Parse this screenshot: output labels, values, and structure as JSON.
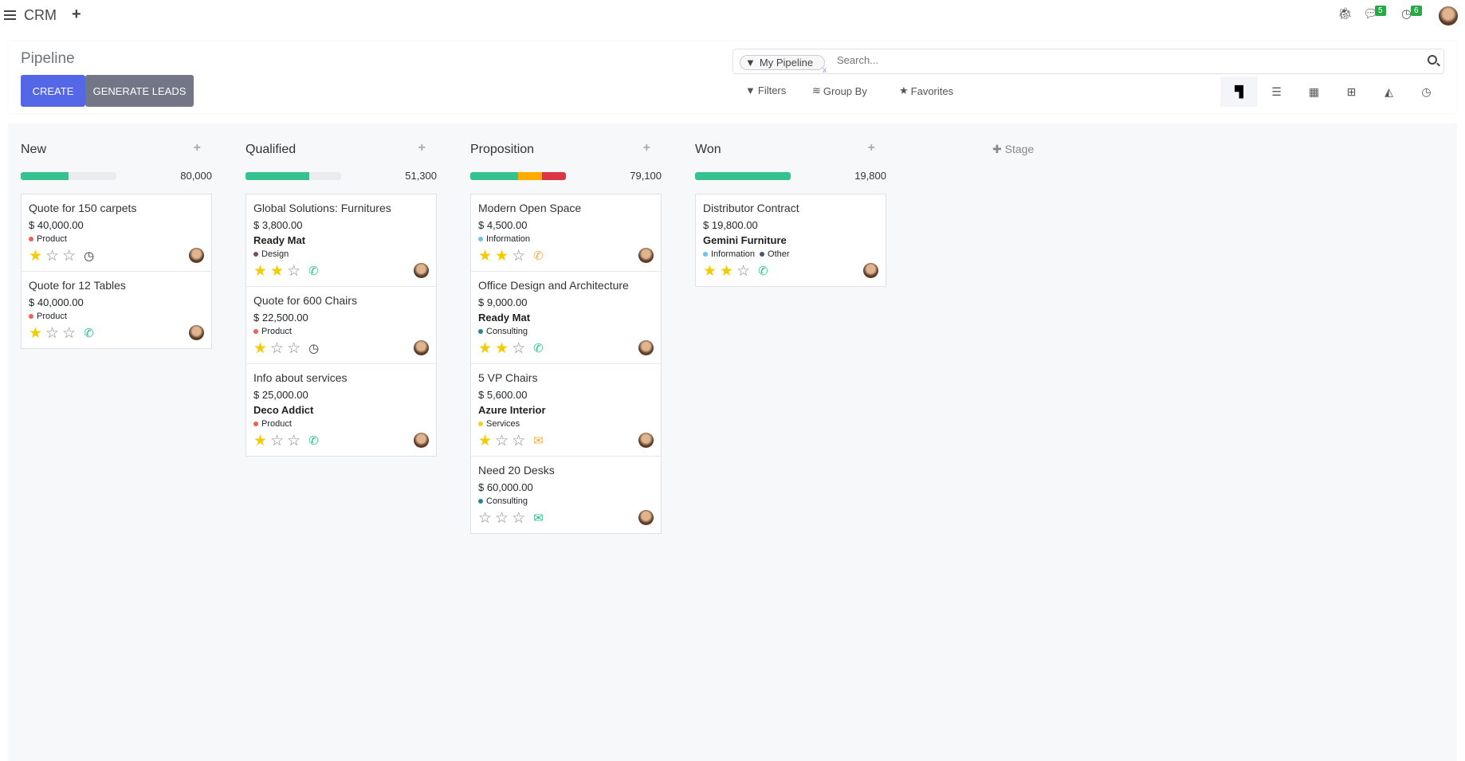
{
  "topbar": {
    "app_name": "CRM",
    "messages_count": "5",
    "activities_count": "6"
  },
  "control_panel": {
    "title": "Pipeline",
    "create_label": "CREATE",
    "generate_leads_label": "GENERATE LEADS",
    "search": {
      "facet": "My Pipeline",
      "placeholder": "Search..."
    },
    "filters_label": "Filters",
    "group_by_label": "Group By",
    "favorites_label": "Favorites",
    "views": [
      "kanban",
      "list",
      "calendar",
      "pivot",
      "graph",
      "activity"
    ],
    "active_view": "kanban"
  },
  "colors": {
    "green": "#34c38f",
    "orange": "#ffac00",
    "red": "#dc3545",
    "primary": "#5468e7"
  },
  "add_stage_label": "Stage",
  "columns": [
    {
      "title": "New",
      "total": "80,000",
      "progress": [
        {
          "color": "#34c38f",
          "pct": 50
        }
      ],
      "cards": [
        {
          "title": "Quote for 150 carpets",
          "amount": "$ 40,000.00",
          "company": "",
          "tags": [
            {
              "label": "Product",
              "color": "#f06050"
            }
          ],
          "stars": 1,
          "activity": "clock"
        },
        {
          "title": "Quote for 12 Tables",
          "amount": "$ 40,000.00",
          "company": "",
          "tags": [
            {
              "label": "Product",
              "color": "#f06050"
            }
          ],
          "stars": 1,
          "activity": "phone"
        }
      ]
    },
    {
      "title": "Qualified",
      "total": "51,300",
      "progress": [
        {
          "color": "#34c38f",
          "pct": 67
        }
      ],
      "cards": [
        {
          "title": "Global Solutions: Furnitures",
          "amount": "$ 3,800.00",
          "company": "Ready Mat",
          "tags": [
            {
              "label": "Design",
              "color": "#814968"
            }
          ],
          "stars": 2,
          "activity": "phone"
        },
        {
          "title": "Quote for 600 Chairs",
          "amount": "$ 22,500.00",
          "company": "",
          "tags": [
            {
              "label": "Product",
              "color": "#f06050"
            }
          ],
          "stars": 1,
          "activity": "clock"
        },
        {
          "title": "Info about services",
          "amount": "$ 25,000.00",
          "company": "Deco Addict",
          "tags": [
            {
              "label": "Product",
              "color": "#f06050"
            }
          ],
          "stars": 1,
          "activity": "phone"
        }
      ]
    },
    {
      "title": "Proposition",
      "total": "79,100",
      "progress": [
        {
          "color": "#34c38f",
          "pct": 50
        },
        {
          "color": "#ffac00",
          "pct": 25
        },
        {
          "color": "#dc3545",
          "pct": 25
        }
      ],
      "cards": [
        {
          "title": "Modern Open Space",
          "amount": "$ 4,500.00",
          "company": "",
          "tags": [
            {
              "label": "Information",
              "color": "#6cc1ed"
            }
          ],
          "stars": 2,
          "activity": "phone-warning"
        },
        {
          "title": "Office Design and Architecture",
          "amount": "$ 9,000.00",
          "company": "Ready Mat",
          "tags": [
            {
              "label": "Consulting",
              "color": "#2c8397"
            }
          ],
          "stars": 2,
          "activity": "phone"
        },
        {
          "title": "5 VP Chairs",
          "amount": "$ 5,600.00",
          "company": "Azure Interior",
          "tags": [
            {
              "label": "Services",
              "color": "#f7cd1f"
            }
          ],
          "stars": 1,
          "activity": "email-warning"
        },
        {
          "title": "Need 20 Desks",
          "amount": "$ 60,000.00",
          "company": "",
          "tags": [
            {
              "label": "Consulting",
              "color": "#2c8397"
            }
          ],
          "stars": 0,
          "activity": "email"
        }
      ]
    },
    {
      "title": "Won",
      "total": "19,800",
      "progress": [
        {
          "color": "#34c38f",
          "pct": 100
        }
      ],
      "cards": [
        {
          "title": "Distributor Contract",
          "amount": "$ 19,800.00",
          "company": "Gemini Furniture",
          "tags": [
            {
              "label": "Information",
              "color": "#6cc1ed"
            },
            {
              "label": "Other",
              "color": "#475577"
            }
          ],
          "stars": 2,
          "activity": "phone"
        }
      ]
    }
  ]
}
